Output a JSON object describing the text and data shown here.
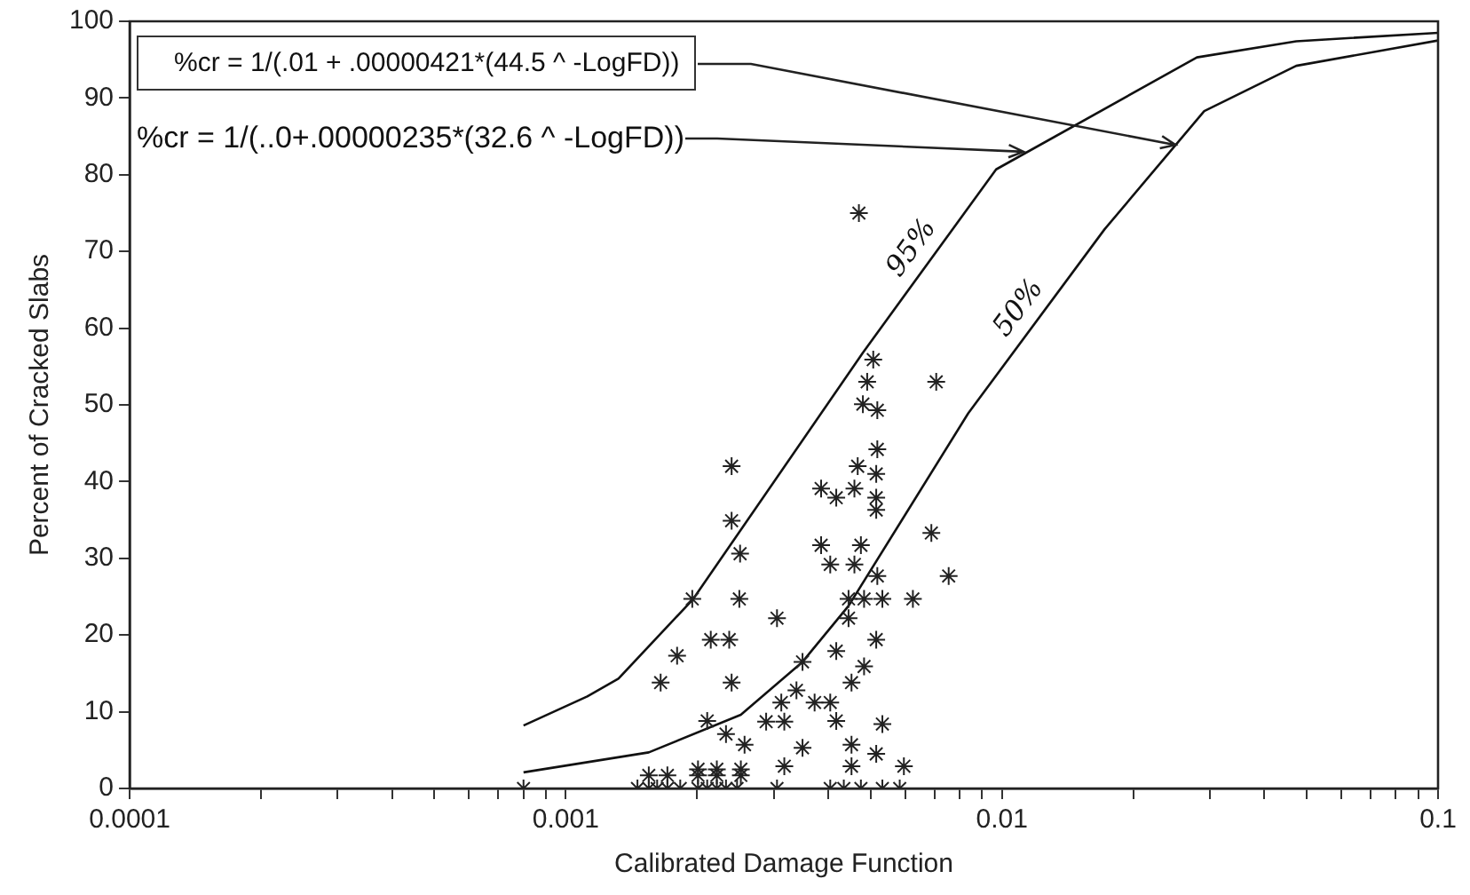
{
  "chart_data": {
    "type": "scatter",
    "xlabel": "Calibrated Damage Function",
    "ylabel": "Percent of Cracked Slabs",
    "log": "x",
    "grid": false,
    "legend": false,
    "xlim": [
      0.0001,
      0.1
    ],
    "xticks": [
      0.0001,
      {
        "value": 0.0002,
        "label": null
      },
      {
        "value": 0.0003,
        "label": null
      },
      {
        "value": 0.0004,
        "label": null
      },
      {
        "value": 0.0005,
        "label": null
      },
      {
        "value": 0.0006,
        "label": null
      },
      {
        "value": 0.0007,
        "label": null
      },
      {
        "value": 0.0008,
        "label": null
      },
      {
        "value": 0.0009,
        "label": null
      },
      0.001,
      {
        "value": 0.002,
        "label": null
      },
      {
        "value": 0.003,
        "label": null
      },
      {
        "value": 0.004,
        "label": null
      },
      {
        "value": 0.005,
        "label": null
      },
      {
        "value": 0.006,
        "label": null
      },
      {
        "value": 0.007,
        "label": null
      },
      {
        "value": 0.008,
        "label": null
      },
      {
        "value": 0.009,
        "label": null
      },
      0.01,
      {
        "value": 0.02,
        "label": null
      },
      {
        "value": 0.03,
        "label": null
      },
      {
        "value": 0.04,
        "label": null
      },
      {
        "value": 0.05,
        "label": null
      },
      {
        "value": 0.06,
        "label": null
      },
      {
        "value": 0.07,
        "label": null
      },
      {
        "value": 0.08,
        "label": null
      },
      {
        "value": 0.09,
        "label": null
      },
      0.1
    ],
    "ylim": [
      0,
      100
    ],
    "yticks": [
      0,
      10,
      20,
      30,
      40,
      50,
      60,
      70,
      80,
      90,
      100
    ],
    "annotations": [
      {
        "text": "%cr = 1/(.01 + .00000421*(44.5 ^ -LogFD))",
        "x": 0.025,
        "y": 84
      },
      {
        "text": "%cr = 1/(..0+.00000235*(32.6 ^ -LogFD))",
        "x": 0.0112,
        "y": 83
      }
    ],
    "series": [
      {
        "marker": "cross",
        "color": "#222222",
        "x": [
          0.0047,
          0.00507,
          0.00491,
          0.00707,
          0.0048,
          0.00518,
          0.00518,
          0.00467,
          0.00515,
          0.0024,
          0.00385,
          0.00417,
          0.00459,
          0.00515,
          0.00515,
          0.0024,
          0.00251,
          0.00689,
          0.00385,
          0.00475,
          0.00404,
          0.00459,
          0.00518,
          0.00755,
          0.00195,
          0.0025,
          0.00445,
          0.00483,
          0.00532,
          0.00625,
          0.00305,
          0.00215,
          0.00237,
          0.0018,
          0.00165,
          0.0024,
          0.00211,
          0.00233,
          0.00257,
          0.00288,
          0.00317,
          0.00312,
          0.00338,
          0.00349,
          0.00372,
          0.00404,
          0.00417,
          0.00417,
          0.00452,
          0.00483,
          0.00515,
          0.00445,
          0.00532,
          0.00452,
          0.00515,
          0.00596,
          0.00349,
          0.00452,
          0.00317,
          0.00155,
          0.00171,
          0.00201,
          0.00222,
          0.00252,
          0.00201,
          0.00222,
          0.00252,
          0.0008,
          0.00146,
          0.00155,
          0.00162,
          0.00171,
          0.00183,
          0.00201,
          0.00211,
          0.00222,
          0.00233,
          0.00247,
          0.00305,
          0.00404,
          0.00434,
          0.00475,
          0.00532,
          0.00583
        ],
        "values": [
          75,
          55.9,
          53,
          53,
          50.1,
          49.3,
          44.2,
          42,
          41,
          42,
          39.1,
          37.9,
          39.1,
          37.9,
          36.3,
          34.9,
          30.6,
          33.3,
          31.7,
          31.7,
          29.2,
          29.2,
          27.7,
          27.7,
          24.7,
          24.7,
          24.7,
          24.7,
          24.7,
          24.7,
          22.2,
          19.4,
          19.4,
          17.3,
          13.8,
          13.8,
          8.8,
          7.1,
          5.7,
          8.7,
          8.7,
          11.2,
          12.8,
          16.5,
          11.2,
          11.2,
          8.8,
          17.9,
          13.8,
          15.9,
          19.4,
          22.2,
          8.4,
          5.7,
          4.5,
          2.9,
          5.3,
          2.9,
          2.9,
          1.7,
          1.7,
          1.7,
          1.7,
          1.7,
          2.5,
          2.5,
          2.5,
          0,
          0,
          0,
          0,
          0,
          0,
          0,
          0,
          0,
          0,
          0,
          0,
          0,
          0,
          0,
          0,
          0
        ]
      },
      {
        "type": "line",
        "marker": "none",
        "name": "95%",
        "color": "#111111",
        "x": [
          0.0008,
          0.00112,
          0.00132,
          0.00196,
          0.0048,
          0.0097,
          0.028,
          0.0473,
          0.1
        ],
        "values": [
          8.2,
          12,
          14.3,
          24.7,
          56.8,
          80.7,
          95.3,
          97.4,
          98.5
        ]
      },
      {
        "type": "line",
        "marker": "none",
        "name": "50%",
        "color": "#111111",
        "x": [
          0.0008,
          0.00155,
          0.00252,
          0.00349,
          0.00445,
          0.00837,
          0.0172,
          0.0291,
          0.0473,
          0.1
        ],
        "values": [
          2.1,
          4.7,
          9.6,
          16.5,
          23.8,
          48.9,
          72.9,
          88.3,
          94.2,
          97.5
        ]
      }
    ]
  }
}
